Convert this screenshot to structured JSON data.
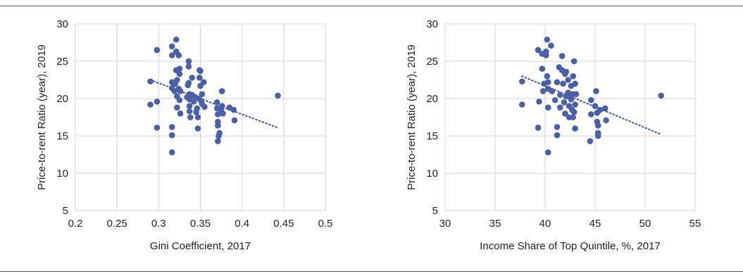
{
  "chart_data": [
    {
      "type": "scatter",
      "xlabel": "Gini Coefficient, 2017",
      "ylabel": "Price-to-rent Ratio (year), 2019",
      "xlim": [
        0.2,
        0.5
      ],
      "ylim": [
        5,
        30
      ],
      "xticks": [
        "0.2",
        "0.25",
        "0.3",
        "0.35",
        "0.4",
        "0.45",
        "0.5"
      ],
      "yticks": [
        "5",
        "10",
        "15",
        "20",
        "25",
        "30"
      ],
      "grid": true,
      "marker_color": "#4a5fa5",
      "trendline": {
        "style": "dotted",
        "x": [
          0.29,
          0.443
        ],
        "y": [
          22.5,
          16.1
        ]
      },
      "points": [
        [
          0.29,
          22.3
        ],
        [
          0.29,
          19.2
        ],
        [
          0.298,
          26.5
        ],
        [
          0.298,
          19.6
        ],
        [
          0.298,
          16.1
        ],
        [
          0.316,
          27.0
        ],
        [
          0.316,
          25.8
        ],
        [
          0.316,
          22.2
        ],
        [
          0.316,
          21.4
        ],
        [
          0.316,
          16.2
        ],
        [
          0.316,
          15.1
        ],
        [
          0.316,
          12.8
        ],
        [
          0.319,
          21.0
        ],
        [
          0.32,
          22.0
        ],
        [
          0.321,
          26.3
        ],
        [
          0.321,
          27.9
        ],
        [
          0.321,
          23.8
        ],
        [
          0.322,
          22.5
        ],
        [
          0.322,
          20.3
        ],
        [
          0.322,
          18.8
        ],
        [
          0.324,
          21.3
        ],
        [
          0.324,
          25.8
        ],
        [
          0.325,
          24.0
        ],
        [
          0.325,
          23.3
        ],
        [
          0.325,
          19.8
        ],
        [
          0.326,
          18.0
        ],
        [
          0.326,
          21.0
        ],
        [
          0.334,
          20.2
        ],
        [
          0.335,
          21.8
        ],
        [
          0.336,
          24.3
        ],
        [
          0.336,
          25.0
        ],
        [
          0.336,
          22.1
        ],
        [
          0.337,
          20.6
        ],
        [
          0.337,
          19.9
        ],
        [
          0.337,
          19.0
        ],
        [
          0.337,
          18.3
        ],
        [
          0.338,
          17.5
        ],
        [
          0.34,
          20.5
        ],
        [
          0.34,
          22.8
        ],
        [
          0.342,
          19.6
        ],
        [
          0.344,
          20.2
        ],
        [
          0.345,
          18.2
        ],
        [
          0.346,
          18.7
        ],
        [
          0.347,
          17.5
        ],
        [
          0.347,
          16.0
        ],
        [
          0.348,
          20.0
        ],
        [
          0.349,
          22.8
        ],
        [
          0.349,
          23.8
        ],
        [
          0.35,
          23.7
        ],
        [
          0.35,
          21.7
        ],
        [
          0.351,
          19.7
        ],
        [
          0.352,
          19.3
        ],
        [
          0.352,
          20.6
        ],
        [
          0.354,
          22.2
        ],
        [
          0.355,
          18.9
        ],
        [
          0.37,
          19.5
        ],
        [
          0.37,
          18.7
        ],
        [
          0.371,
          17.9
        ],
        [
          0.371,
          16.9
        ],
        [
          0.371,
          16.4
        ],
        [
          0.371,
          14.3
        ],
        [
          0.372,
          15.0
        ],
        [
          0.373,
          15.4
        ],
        [
          0.375,
          18.5
        ],
        [
          0.376,
          21.0
        ],
        [
          0.376,
          19.0
        ],
        [
          0.377,
          18.0
        ],
        [
          0.385,
          18.8
        ],
        [
          0.39,
          18.5
        ],
        [
          0.391,
          17.1
        ],
        [
          0.443,
          20.4
        ]
      ]
    },
    {
      "type": "scatter",
      "xlabel": "Income Share of Top Quintile, %, 2017",
      "ylabel": "Price-to-rent Ratio (year), 2019",
      "xlim": [
        30,
        55
      ],
      "ylim": [
        5,
        30
      ],
      "xticks": [
        "30",
        "35",
        "40",
        "45",
        "50",
        "55"
      ],
      "yticks": [
        "5",
        "10",
        "15",
        "20",
        "25",
        "30"
      ],
      "grid": true,
      "marker_color": "#4a5fa5",
      "trendline": {
        "style": "dotted",
        "x": [
          37.7,
          51.6
        ],
        "y": [
          23.0,
          15.2
        ]
      },
      "points": [
        [
          37.7,
          22.3
        ],
        [
          37.7,
          19.2
        ],
        [
          39.3,
          26.5
        ],
        [
          39.3,
          16.1
        ],
        [
          39.4,
          19.6
        ],
        [
          39.7,
          26.0
        ],
        [
          39.7,
          24.0
        ],
        [
          39.8,
          21.0
        ],
        [
          39.9,
          22.0
        ],
        [
          40.1,
          26.3
        ],
        [
          40.1,
          25.8
        ],
        [
          40.2,
          27.9
        ],
        [
          40.2,
          23.0
        ],
        [
          40.3,
          22.2
        ],
        [
          40.3,
          21.3
        ],
        [
          40.3,
          18.8
        ],
        [
          40.3,
          12.8
        ],
        [
          40.6,
          27.1
        ],
        [
          40.7,
          21.0
        ],
        [
          41.0,
          19.8
        ],
        [
          41.2,
          22.2
        ],
        [
          41.2,
          16.2
        ],
        [
          41.2,
          15.1
        ],
        [
          41.4,
          24.2
        ],
        [
          41.5,
          20.5
        ],
        [
          41.5,
          18.8
        ],
        [
          41.7,
          25.7
        ],
        [
          41.7,
          23.8
        ],
        [
          41.8,
          22.0
        ],
        [
          41.9,
          19.5
        ],
        [
          42.0,
          23.3
        ],
        [
          42.0,
          18.0
        ],
        [
          42.1,
          20.3
        ],
        [
          42.1,
          23.6
        ],
        [
          42.3,
          22.5
        ],
        [
          42.3,
          20.8
        ],
        [
          42.4,
          19.0
        ],
        [
          42.4,
          17.5
        ],
        [
          42.5,
          20.2
        ],
        [
          42.6,
          21.7
        ],
        [
          42.6,
          19.9
        ],
        [
          42.7,
          18.5
        ],
        [
          42.8,
          23.0
        ],
        [
          42.8,
          20.6
        ],
        [
          42.8,
          17.5
        ],
        [
          42.9,
          25.0
        ],
        [
          42.9,
          18.2
        ],
        [
          43.0,
          22.0
        ],
        [
          43.0,
          19.2
        ],
        [
          43.0,
          16.0
        ],
        [
          43.1,
          20.6
        ],
        [
          44.5,
          14.3
        ],
        [
          44.6,
          17.9
        ],
        [
          44.6,
          19.8
        ],
        [
          45.0,
          19.0
        ],
        [
          45.1,
          21.0
        ],
        [
          45.2,
          18.1
        ],
        [
          45.2,
          16.9
        ],
        [
          45.3,
          16.4
        ],
        [
          45.3,
          15.4
        ],
        [
          45.3,
          15.0
        ],
        [
          45.5,
          18.5
        ],
        [
          46.0,
          18.7
        ],
        [
          46.1,
          17.1
        ],
        [
          51.6,
          20.4
        ]
      ]
    }
  ]
}
